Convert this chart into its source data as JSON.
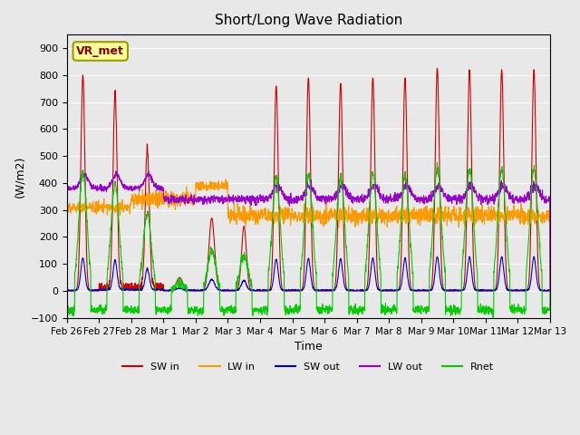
{
  "title": "Short/Long Wave Radiation",
  "xlabel": "Time",
  "ylabel": "(W/m2)",
  "ylim": [
    -100,
    950
  ],
  "yticks": [
    -100,
    0,
    100,
    200,
    300,
    400,
    500,
    600,
    700,
    800,
    900
  ],
  "colors": {
    "SW_in": "#cc0000",
    "LW_in": "#ff9900",
    "SW_out": "#0000cc",
    "LW_out": "#9900cc",
    "Rnet": "#00cc00"
  },
  "bg_color": "#e8e8e8",
  "annotation_text": "VR_met",
  "annotation_color": "#8b0000",
  "annotation_bg": "#ffff99",
  "annotation_border": "#999900",
  "legend_labels": [
    "SW in",
    "LW in",
    "SW out",
    "LW out",
    "Rnet"
  ],
  "x_tick_labels": [
    "Feb 26",
    "Feb 27",
    "Feb 28",
    "Mar 1",
    "Mar 2",
    "Mar 3",
    "Mar 4",
    "Mar 5",
    "Mar 6",
    "Mar 7",
    "Mar 8",
    "Mar 9",
    "Mar 10",
    "Mar 11",
    "Mar 12",
    "Mar 13"
  ],
  "n_points": 2040,
  "days": 15
}
